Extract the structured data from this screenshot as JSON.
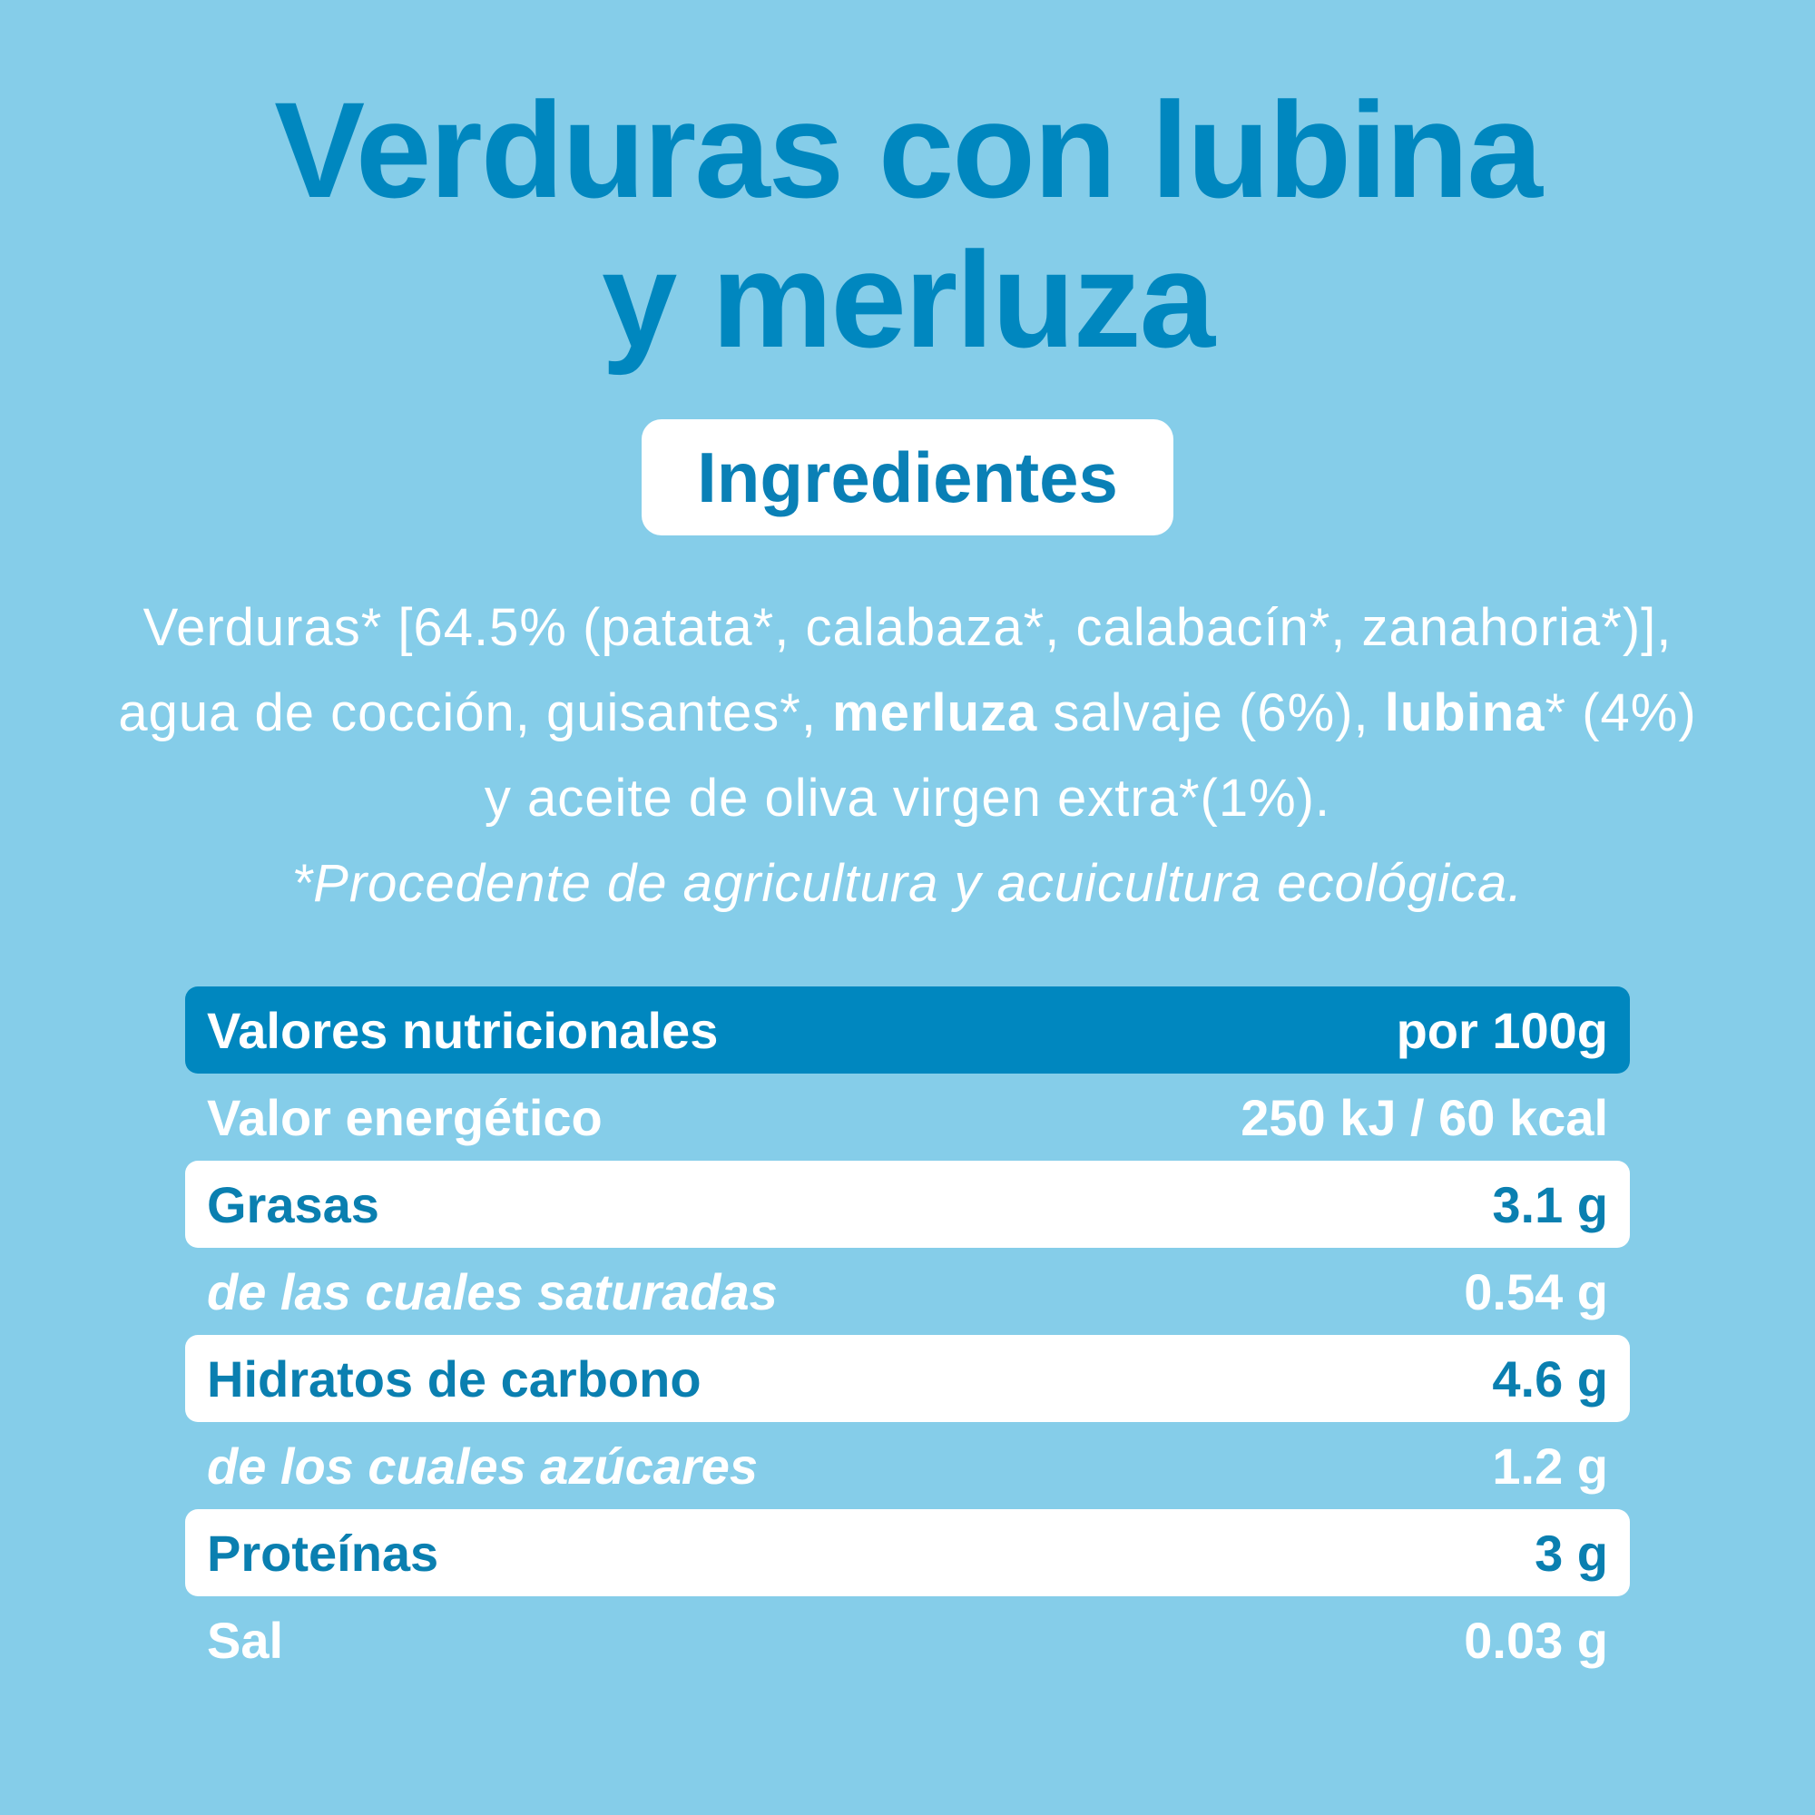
{
  "title": {
    "line1": "Verduras con lubina",
    "line2": "y merluza"
  },
  "ingredients": {
    "badge": "Ingredientes",
    "segments": [
      {
        "text": "Verduras* [64.5% (patata*, calabaza*, calabacín*, zanahoria*)], agua de cocción, guisantes*, ",
        "bold": false
      },
      {
        "text": "merluza",
        "bold": true
      },
      {
        "text": " salvaje (6%), ",
        "bold": false
      },
      {
        "text": "lubina",
        "bold": true
      },
      {
        "text": "* (4%)  y aceite de oliva virgen extra*(1%).",
        "bold": false
      }
    ],
    "note": "*Procedente de agricultura y acuicultura ecológica."
  },
  "table": {
    "header": [
      "Valores nutricionales",
      "por 100g"
    ],
    "rows": [
      [
        "Valor energético",
        "250 kJ / 60 kcal"
      ],
      [
        "Grasas",
        "3.1 g"
      ],
      [
        "de las cuales saturadas",
        "0.54 g"
      ],
      [
        "Hidratos de carbono",
        "4.6 g"
      ],
      [
        "de los cuales azúcares",
        "1.2 g"
      ],
      [
        "Proteínas",
        "3 g"
      ],
      [
        "Sal",
        "0.03 g"
      ]
    ]
  }
}
